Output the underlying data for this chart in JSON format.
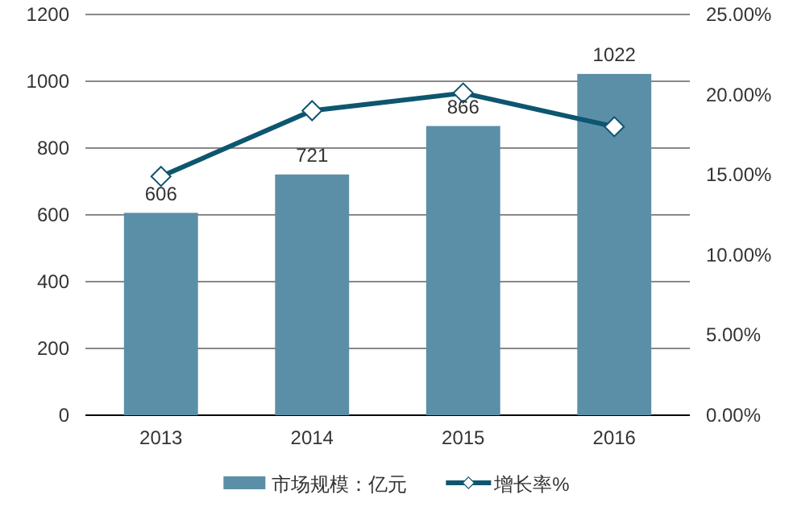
{
  "chart_data": {
    "type": "bar",
    "categories": [
      "2013",
      "2014",
      "2015",
      "2016"
    ],
    "series": [
      {
        "name": "市场规模：亿元",
        "color": "#5b8fa7",
        "values": [
          606,
          721,
          866,
          1022
        ],
        "value_labels": [
          "606",
          "721",
          "866",
          "1022"
        ]
      },
      {
        "name": "增长率%",
        "type": "line",
        "axis": "y2",
        "color": "#0e5670",
        "marker": "diamond",
        "values": [
          14.9,
          19.0,
          20.1,
          18.0
        ]
      }
    ],
    "ylim": [
      0,
      1200
    ],
    "yticks": [
      0,
      200,
      400,
      600,
      800,
      1000,
      1200
    ],
    "y2lim": [
      0,
      25
    ],
    "y2ticks": [
      {
        "value": 0,
        "label": "0.00%"
      },
      {
        "value": 5,
        "label": "5.00%"
      },
      {
        "value": 10,
        "label": "10.00%"
      },
      {
        "value": 15,
        "label": "15.00%"
      },
      {
        "value": 20,
        "label": "20.00%"
      },
      {
        "value": 25,
        "label": "25.00%"
      }
    ],
    "grid": "y",
    "legend": "bottom"
  }
}
